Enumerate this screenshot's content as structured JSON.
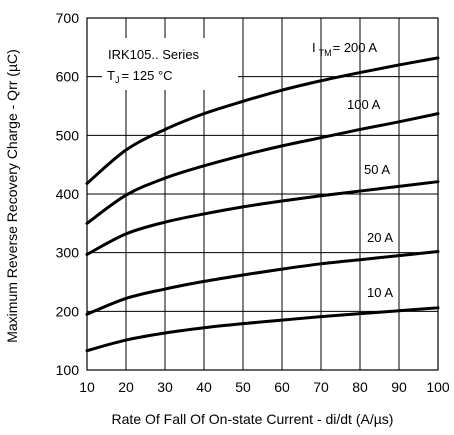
{
  "chart_data": {
    "type": "line",
    "xlabel": "Rate Of Fall Of On-state Current - di/dt (A/µs)",
    "ylabel": "Maximum Reverse Recovery Charge - Qrr (µC)",
    "xlim": [
      10,
      100
    ],
    "ylim": [
      100,
      700
    ],
    "x_ticks": [
      "10",
      "20",
      "30",
      "40",
      "50",
      "60",
      "70",
      "80",
      "90",
      "100"
    ],
    "y_ticks": [
      "100",
      "200",
      "300",
      "400",
      "500",
      "600",
      "700"
    ],
    "grid": true,
    "x": [
      10,
      20,
      30,
      40,
      50,
      60,
      70,
      80,
      90,
      100
    ],
    "annotation": {
      "series_line": "IRK105.. Series",
      "temp_prefix": "T",
      "temp_sub": "J",
      "temp_value": "= 125 °C",
      "itm_prefix": "I",
      "itm_sub": "TM"
    },
    "series": [
      {
        "name": "= 200 A",
        "values": [
          418,
          475,
          510,
          537,
          558,
          577,
          593,
          607,
          620,
          632
        ]
      },
      {
        "name": "100 A",
        "values": [
          350,
          398,
          427,
          448,
          466,
          482,
          496,
          510,
          523,
          537
        ]
      },
      {
        "name": "50 A",
        "values": [
          297,
          332,
          352,
          366,
          378,
          388,
          397,
          405,
          413,
          421
        ]
      },
      {
        "name": "20 A",
        "values": [
          195,
          222,
          238,
          251,
          262,
          272,
          281,
          288,
          295,
          302
        ]
      },
      {
        "name": "10 A",
        "values": [
          133,
          151,
          163,
          172,
          179,
          185,
          191,
          196,
          201,
          206
        ]
      }
    ]
  }
}
